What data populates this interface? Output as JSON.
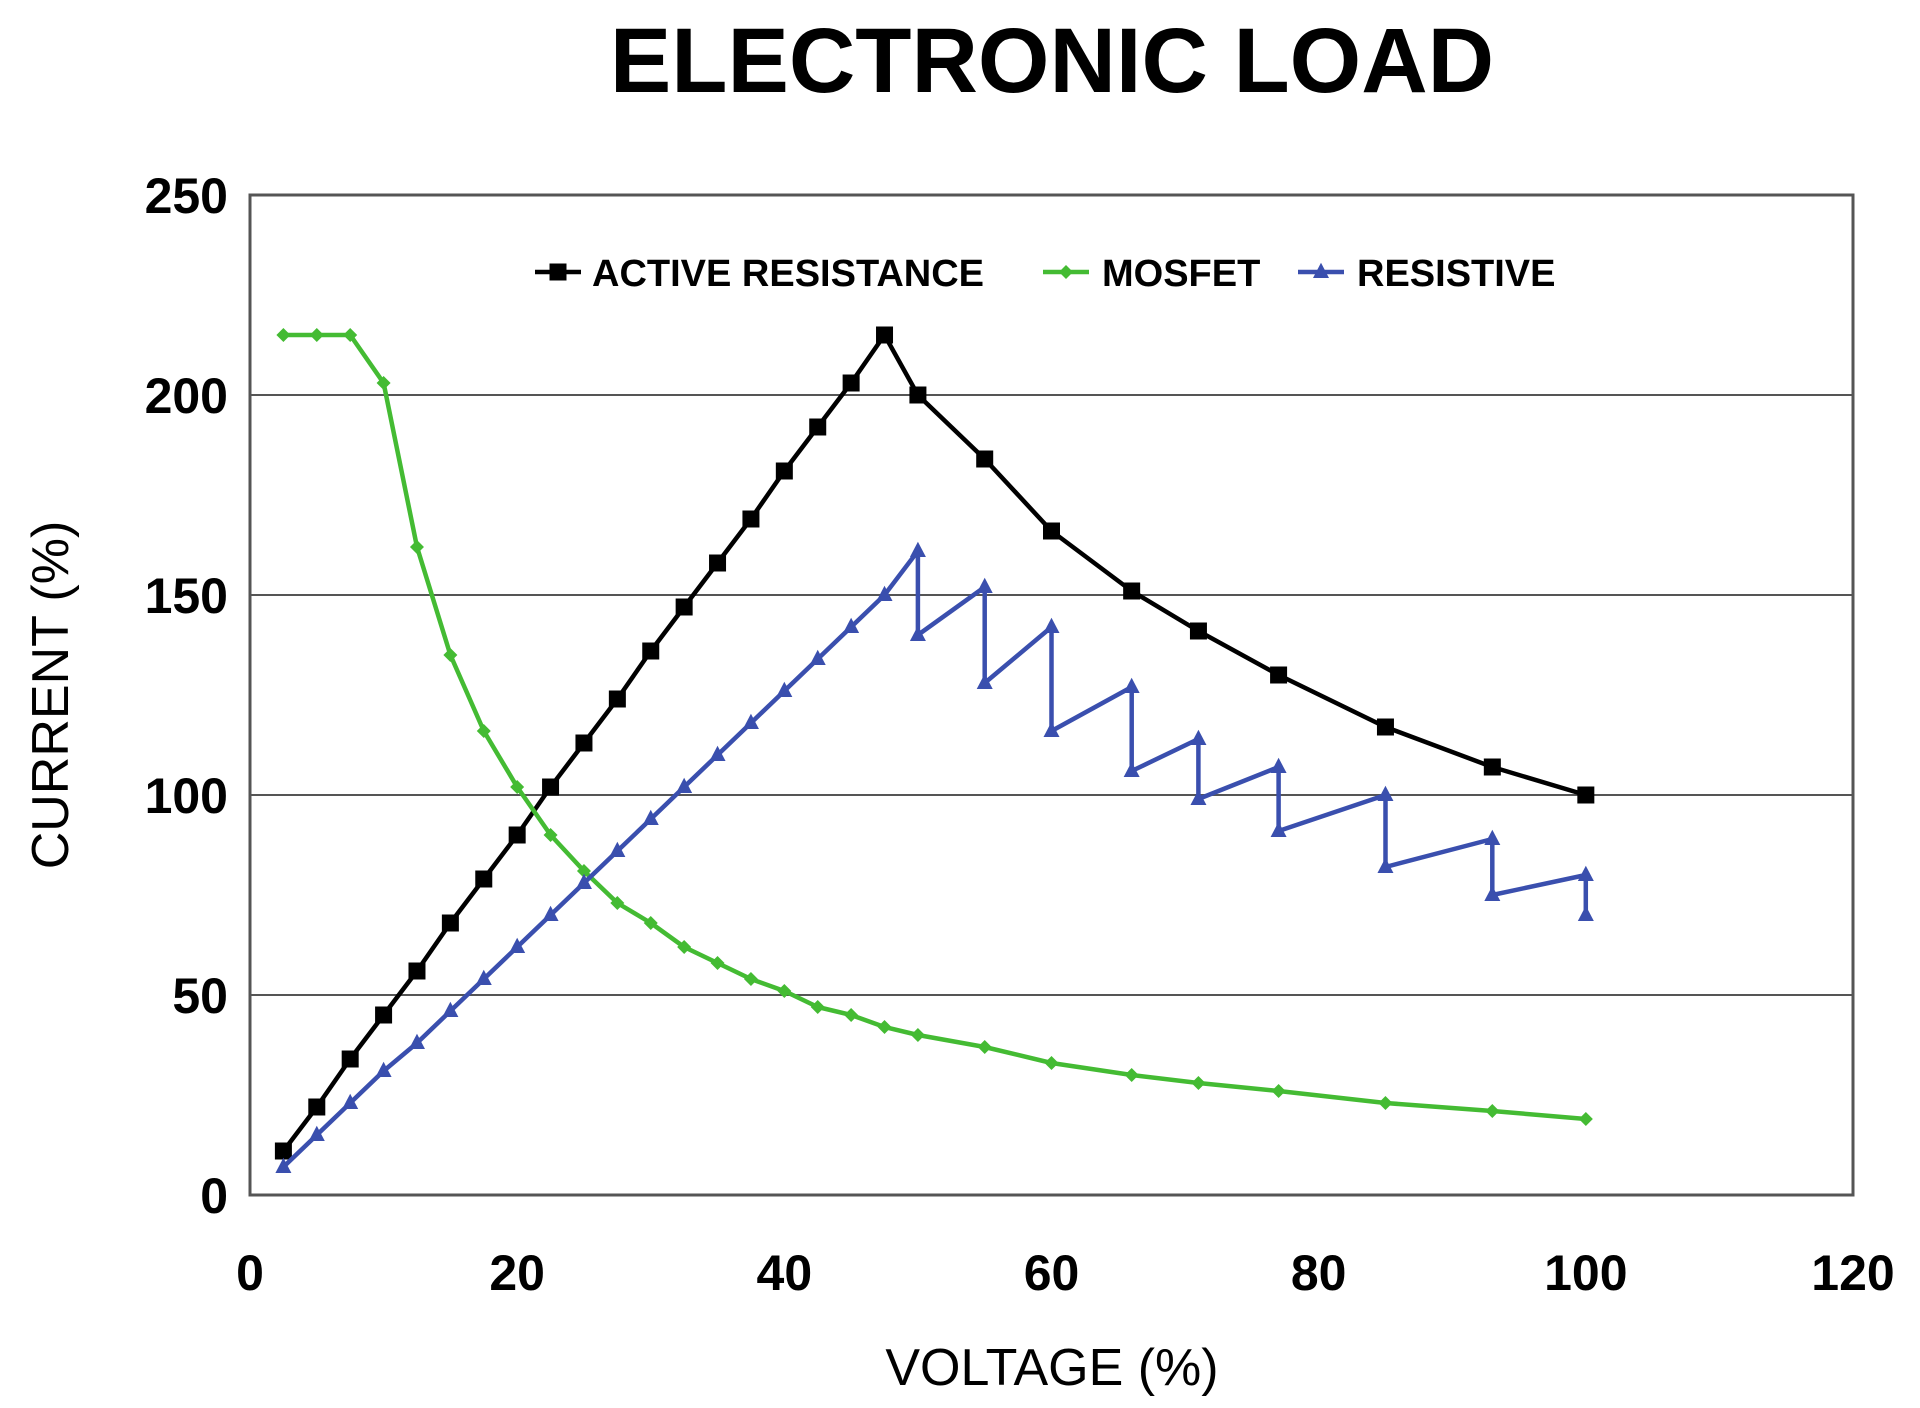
{
  "chart_data": {
    "type": "line",
    "title": "ELECTRONIC LOAD",
    "xlabel": "VOLTAGE (%)",
    "ylabel": "CURRENT (%)",
    "xlim": [
      0,
      120
    ],
    "ylim": [
      0,
      250
    ],
    "x_ticks": [
      "0",
      "20",
      "40",
      "60",
      "80",
      "100",
      "120"
    ],
    "y_ticks": [
      "0",
      "50",
      "100",
      "150",
      "200",
      "250"
    ],
    "grid": "horizontal",
    "legend_position": "top-center",
    "series": [
      {
        "name": "ACTIVE RESISTANCE",
        "color": "#000000",
        "marker": "square",
        "points": [
          [
            2.5,
            11
          ],
          [
            5,
            22
          ],
          [
            7.5,
            34
          ],
          [
            10,
            45
          ],
          [
            12.5,
            56
          ],
          [
            15,
            68
          ],
          [
            17.5,
            79
          ],
          [
            20,
            90
          ],
          [
            22.5,
            102
          ],
          [
            25,
            113
          ],
          [
            27.5,
            124
          ],
          [
            30,
            136
          ],
          [
            32.5,
            147
          ],
          [
            35,
            158
          ],
          [
            37.5,
            169
          ],
          [
            40,
            181
          ],
          [
            42.5,
            192
          ],
          [
            45,
            203
          ],
          [
            47.5,
            215
          ],
          [
            50,
            200
          ],
          [
            55,
            184
          ],
          [
            60,
            166
          ],
          [
            66,
            151
          ],
          [
            71,
            141
          ],
          [
            77,
            130
          ],
          [
            85,
            117
          ],
          [
            93,
            107
          ],
          [
            100,
            100
          ]
        ]
      },
      {
        "name": "MOSFET",
        "color": "#44bb33",
        "marker": "diamond",
        "points": [
          [
            2.5,
            215
          ],
          [
            5,
            215
          ],
          [
            7.5,
            215
          ],
          [
            10,
            203
          ],
          [
            12.5,
            162
          ],
          [
            15,
            135
          ],
          [
            17.5,
            116
          ],
          [
            20,
            102
          ],
          [
            22.5,
            90
          ],
          [
            25,
            81
          ],
          [
            27.5,
            73
          ],
          [
            30,
            68
          ],
          [
            32.5,
            62
          ],
          [
            35,
            58
          ],
          [
            37.5,
            54
          ],
          [
            40,
            51
          ],
          [
            42.5,
            47
          ],
          [
            45,
            45
          ],
          [
            47.5,
            42
          ],
          [
            50,
            40
          ],
          [
            55,
            37
          ],
          [
            60,
            33
          ],
          [
            66,
            30
          ],
          [
            71,
            28
          ],
          [
            77,
            26
          ],
          [
            85,
            23
          ],
          [
            93,
            21
          ],
          [
            100,
            19
          ]
        ]
      },
      {
        "name": "RESISTIVE",
        "color": "#3a4fae",
        "marker": "triangle",
        "points": [
          [
            2.5,
            7
          ],
          [
            5,
            15
          ],
          [
            7.5,
            23
          ],
          [
            10,
            31
          ],
          [
            12.5,
            38
          ],
          [
            15,
            46
          ],
          [
            17.5,
            54
          ],
          [
            20,
            62
          ],
          [
            22.5,
            70
          ],
          [
            25,
            78
          ],
          [
            27.5,
            86
          ],
          [
            30,
            94
          ],
          [
            32.5,
            102
          ],
          [
            35,
            110
          ],
          [
            37.5,
            118
          ],
          [
            40,
            126
          ],
          [
            42.5,
            134
          ],
          [
            45,
            142
          ],
          [
            47.5,
            150
          ],
          [
            50,
            161
          ],
          [
            50,
            140
          ],
          [
            55,
            152
          ],
          [
            55,
            128
          ],
          [
            60,
            142
          ],
          [
            60,
            116
          ],
          [
            66,
            127
          ],
          [
            66,
            106
          ],
          [
            71,
            114
          ],
          [
            71,
            99
          ],
          [
            77,
            107
          ],
          [
            77,
            91
          ],
          [
            85,
            100
          ],
          [
            85,
            82
          ],
          [
            93,
            89
          ],
          [
            93,
            75
          ],
          [
            100,
            80
          ],
          [
            100,
            70
          ]
        ]
      }
    ]
  }
}
